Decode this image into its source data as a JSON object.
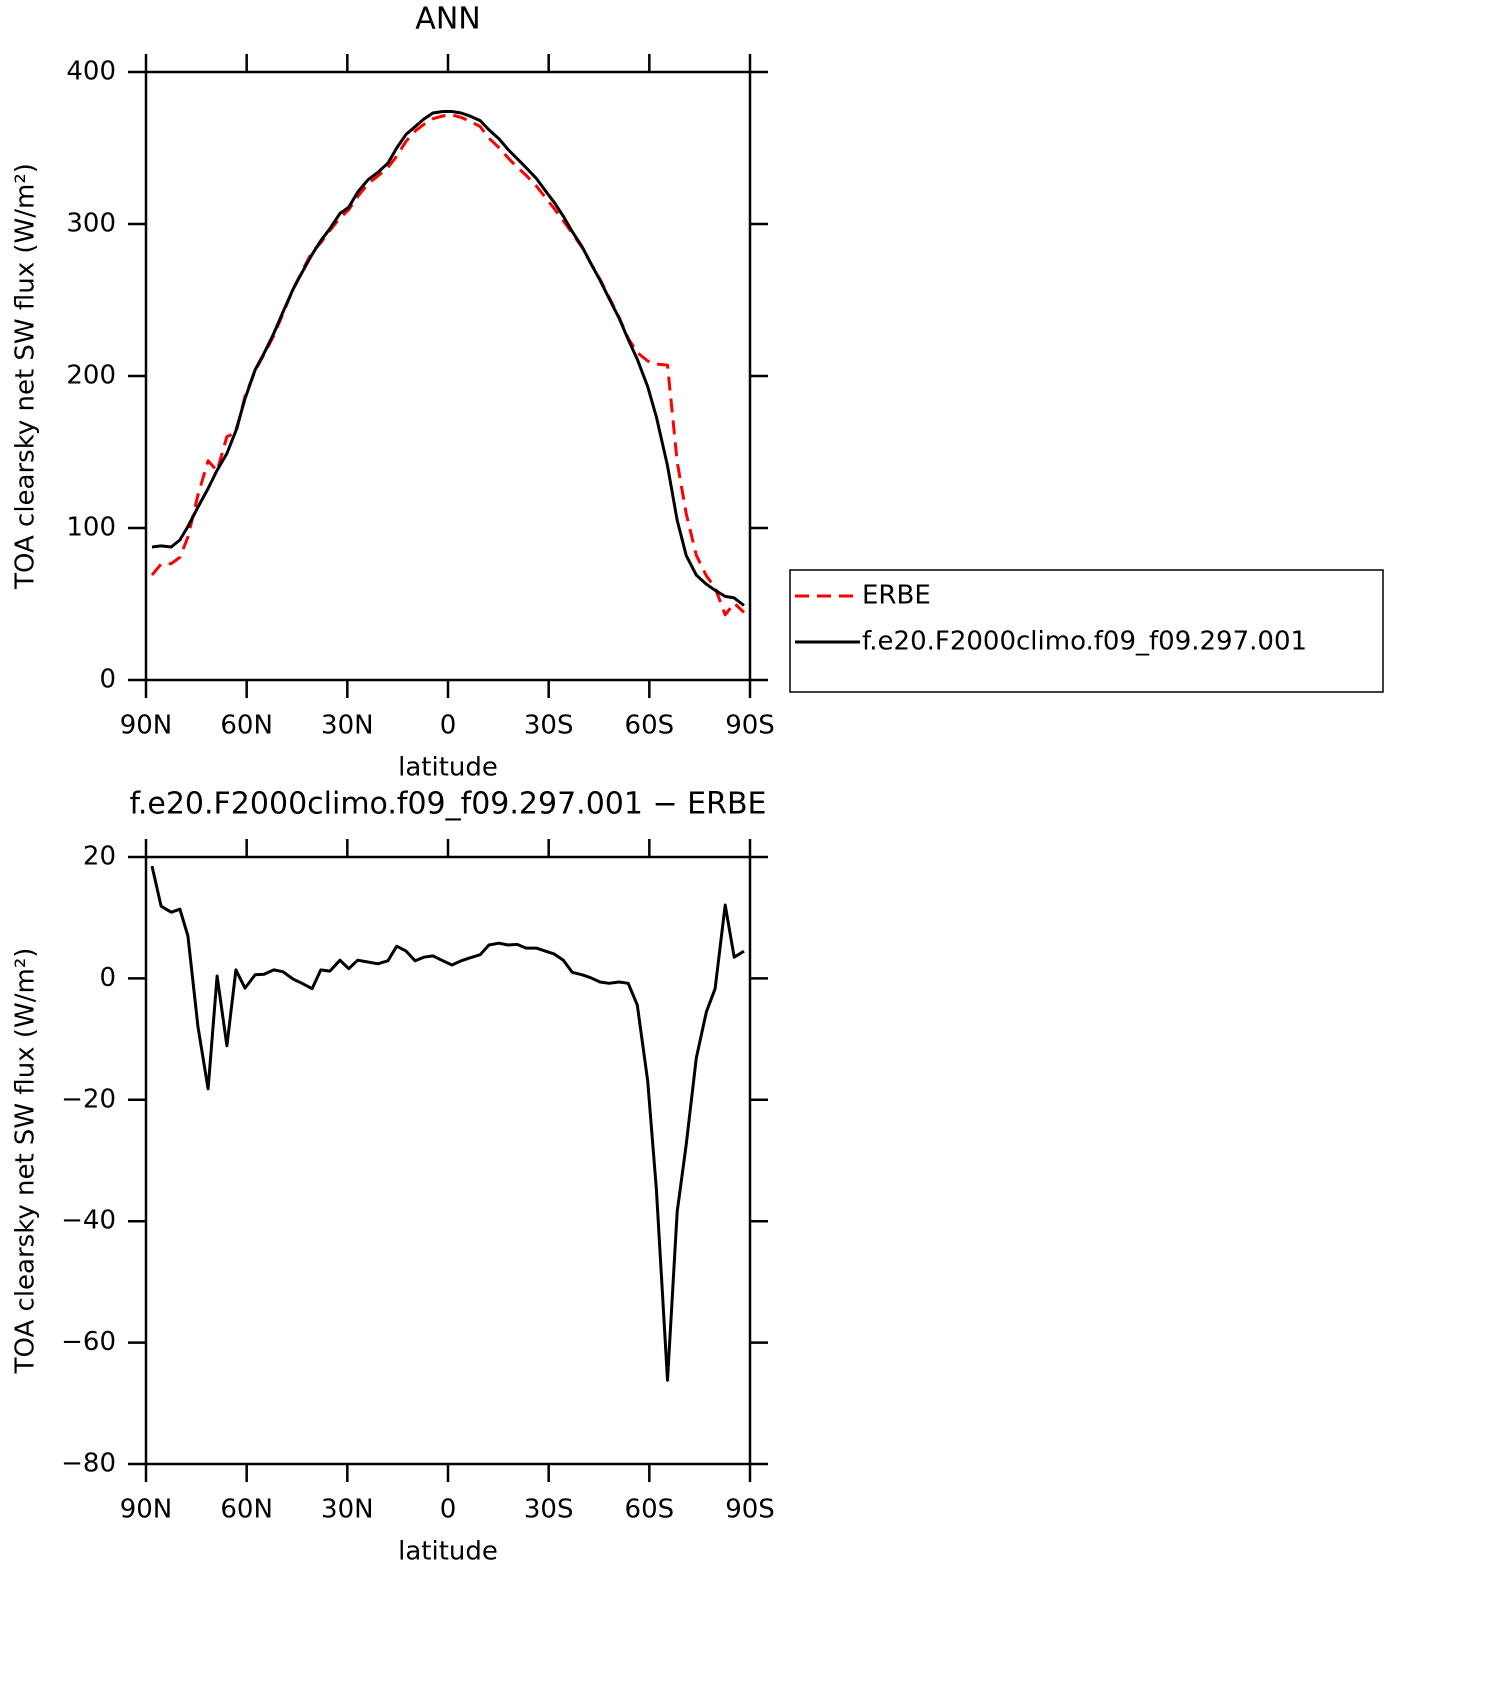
{
  "chart_data": [
    {
      "type": "line",
      "title": "ANN",
      "xlabel": "latitude",
      "ylabel": "TOA clearsky net SW flux (W/m²)",
      "x": [
        88.2,
        85.5,
        82.5,
        79.9,
        77.5,
        74.5,
        71.5,
        68.8,
        65.9,
        63.2,
        60.5,
        57.5,
        54.8,
        51.9,
        49.2,
        46.2,
        43.5,
        40.5,
        37.9,
        35.2,
        32.2,
        29.6,
        26.9,
        23.9,
        20.9,
        17.9,
        15.3,
        12.5,
        9.8,
        7.2,
        4.5,
        1.5,
        -1.2,
        -3.9,
        -6.6,
        -9.6,
        -12.2,
        -15.2,
        -17.9,
        -20.6,
        -23.3,
        -26.3,
        -29.0,
        -31.7,
        -34.4,
        -37.0,
        -40.0,
        -42.6,
        -45.3,
        -48.0,
        -51.0,
        -53.7,
        -56.4,
        -59.5,
        -62.1,
        -65.4,
        -68.3,
        -71.0,
        -74.0,
        -77.0,
        -79.6,
        -82.6,
        -85.3,
        -88.2
      ],
      "xlim": [
        90,
        -90
      ],
      "xticks": [
        {
          "value": 90,
          "label": "90N"
        },
        {
          "value": 60,
          "label": "60N"
        },
        {
          "value": 30,
          "label": "30N"
        },
        0,
        {
          "value": -30,
          "label": "30S"
        },
        {
          "value": -60,
          "label": "60S"
        },
        {
          "value": -90,
          "label": "90S"
        }
      ],
      "ylim": [
        0,
        400
      ],
      "yticks": [
        0,
        100,
        200,
        300,
        400
      ],
      "legend": "right",
      "series": [
        {
          "name": "ERBE",
          "color": "#ff0000",
          "line_style": "dashed",
          "values": [
            69.0,
            76.3,
            76.6,
            80.7,
            94,
            121.8,
            144.2,
            137.6,
            160.1,
            162.6,
            186.6,
            203.4,
            214.3,
            226.6,
            240.9,
            257.1,
            268.8,
            281.7,
            287.6,
            295.8,
            304,
            309.4,
            318,
            326.3,
            331.6,
            337.1,
            344.7,
            354.5,
            361.1,
            365.5,
            369.3,
            371.1,
            371.8,
            370.1,
            367.6,
            364.1,
            356.5,
            350.2,
            343.5,
            337.4,
            332,
            325,
            317.5,
            310,
            302,
            294,
            284.4,
            273.9,
            263.6,
            251.8,
            238.6,
            224.8,
            215.4,
            209.9,
            207.8,
            207.2,
            143.4,
            109.4,
            82.1,
            68.5,
            60.7,
            42.9,
            50.5,
            44.5
          ]
        },
        {
          "name": "f.e20.F2000climo.f09_f09.297.001",
          "color": "#000000",
          "line_style": "solid",
          "values": [
            87.5,
            88.2,
            87.5,
            92.1,
            101,
            113.8,
            126,
            138,
            149,
            164,
            185,
            204,
            215,
            228,
            242,
            257,
            268,
            280,
            289,
            297,
            307,
            311,
            321,
            329,
            334,
            340,
            350,
            359,
            364,
            369,
            373,
            374,
            374,
            373,
            371,
            368,
            362,
            356,
            349,
            343,
            337,
            330,
            322,
            314,
            305,
            295,
            285,
            274,
            263,
            251,
            238,
            224,
            211,
            193,
            173,
            141,
            105,
            82,
            69,
            63,
            59,
            55,
            54,
            49
          ]
        }
      ]
    },
    {
      "type": "line",
      "title": "f.e20.F2000climo.f09_f09.297.001 − ERBE",
      "xlabel": "latitude",
      "ylabel": "TOA clearsky net SW flux (W/m²)",
      "x": [
        88.2,
        85.5,
        82.5,
        79.9,
        77.5,
        74.5,
        71.5,
        68.8,
        65.9,
        63.2,
        60.5,
        57.5,
        54.8,
        51.9,
        49.2,
        46.2,
        43.5,
        40.5,
        37.9,
        35.2,
        32.2,
        29.6,
        26.9,
        23.9,
        20.9,
        17.9,
        15.3,
        12.5,
        9.8,
        7.2,
        4.5,
        1.5,
        -1.2,
        -3.9,
        -6.6,
        -9.6,
        -12.2,
        -15.2,
        -17.9,
        -20.6,
        -23.3,
        -26.3,
        -29.0,
        -31.7,
        -34.4,
        -37.0,
        -40.0,
        -42.6,
        -45.3,
        -48.0,
        -51.0,
        -53.7,
        -56.4,
        -59.5,
        -62.1,
        -65.4,
        -68.3,
        -71.0,
        -74.0,
        -77.0,
        -79.6,
        -82.6,
        -85.3,
        -88.2
      ],
      "xlim": [
        90,
        -90
      ],
      "xticks": [
        {
          "value": 90,
          "label": "90N"
        },
        {
          "value": 60,
          "label": "60N"
        },
        {
          "value": 30,
          "label": "30N"
        },
        0,
        {
          "value": -30,
          "label": "30S"
        },
        {
          "value": -60,
          "label": "60S"
        },
        {
          "value": -90,
          "label": "90S"
        }
      ],
      "ylim": [
        -80,
        20
      ],
      "yticks": [
        {
          "value": -80,
          "label": "−80"
        },
        {
          "value": -60,
          "label": "−60"
        },
        {
          "value": -40,
          "label": "−40"
        },
        {
          "value": -20,
          "label": "−20"
        },
        0,
        20
      ],
      "color": "#000000",
      "values": [
        18.5,
        11.9,
        10.9,
        11.4,
        7.0,
        -8.0,
        -18.2,
        0.4,
        -11.1,
        1.4,
        -1.6,
        0.6,
        0.7,
        1.4,
        1.1,
        -0.1,
        -0.8,
        -1.7,
        1.4,
        1.2,
        3.0,
        1.6,
        3.0,
        2.7,
        2.4,
        2.9,
        5.3,
        4.5,
        2.9,
        3.5,
        3.7,
        2.9,
        2.2,
        2.9,
        3.4,
        3.9,
        5.5,
        5.8,
        5.5,
        5.6,
        5.0,
        5.0,
        4.5,
        4.0,
        3.0,
        1.0,
        0.6,
        0.1,
        -0.6,
        -0.8,
        -0.6,
        -0.8,
        -4.4,
        -16.9,
        -34.8,
        -66.2,
        -38.4,
        -27.4,
        -13.1,
        -5.5,
        -1.7,
        12.1,
        3.5,
        4.5
      ]
    }
  ]
}
